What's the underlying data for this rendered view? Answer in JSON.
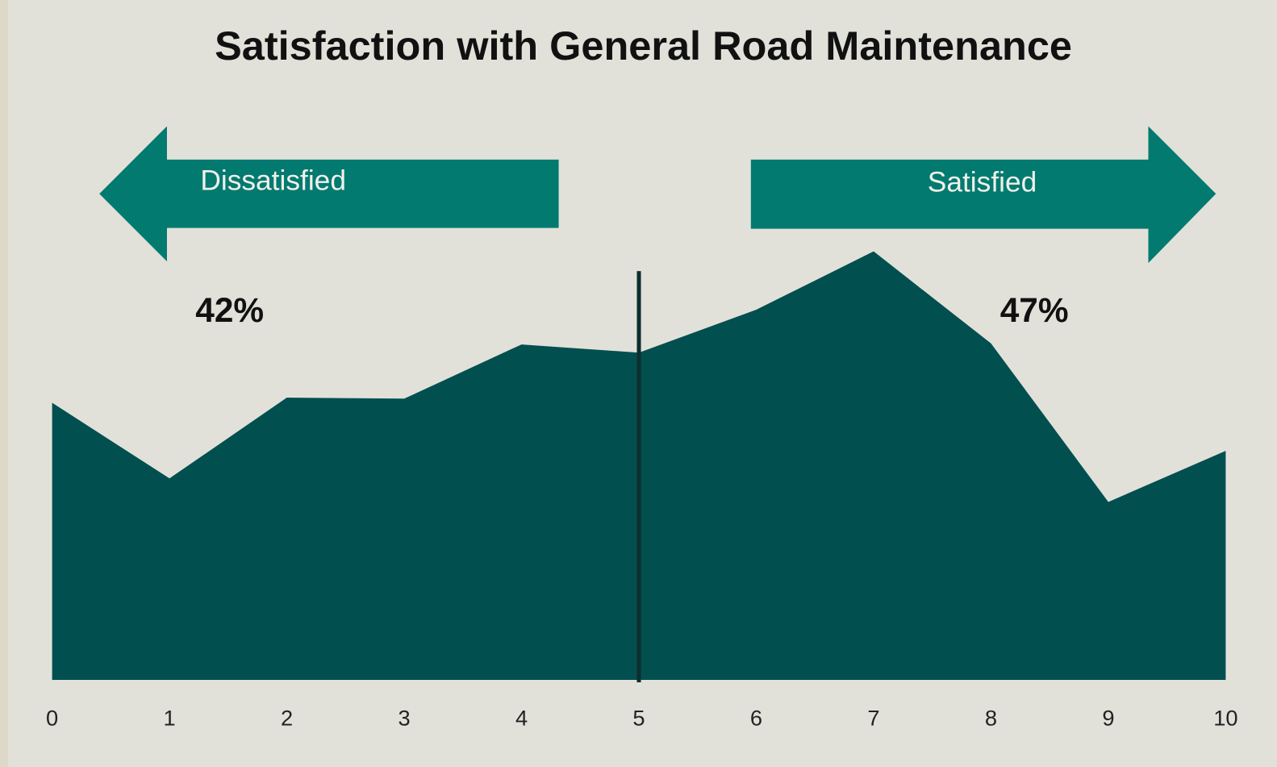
{
  "chart_data": {
    "type": "area",
    "title": "Satisfaction with General Road Maintenance",
    "x": [
      0,
      1,
      2,
      3,
      4,
      5,
      6,
      7,
      8,
      9,
      10
    ],
    "values": [
      2.71,
      1.97,
      2.76,
      2.75,
      3.28,
      3.2,
      3.62,
      4.19,
      3.29,
      1.74,
      2.24
    ],
    "color": "#024f50",
    "xlim": [
      0,
      10
    ],
    "xticks": [
      0,
      1,
      2,
      3,
      4,
      5,
      6,
      7,
      8,
      9,
      10
    ],
    "ylim": [
      0,
      5
    ],
    "divider_x": 5,
    "annotations": {
      "left_label": "Dissatisfied",
      "right_label": "Satisfied",
      "left_share": "42%",
      "right_share": "47%"
    }
  }
}
